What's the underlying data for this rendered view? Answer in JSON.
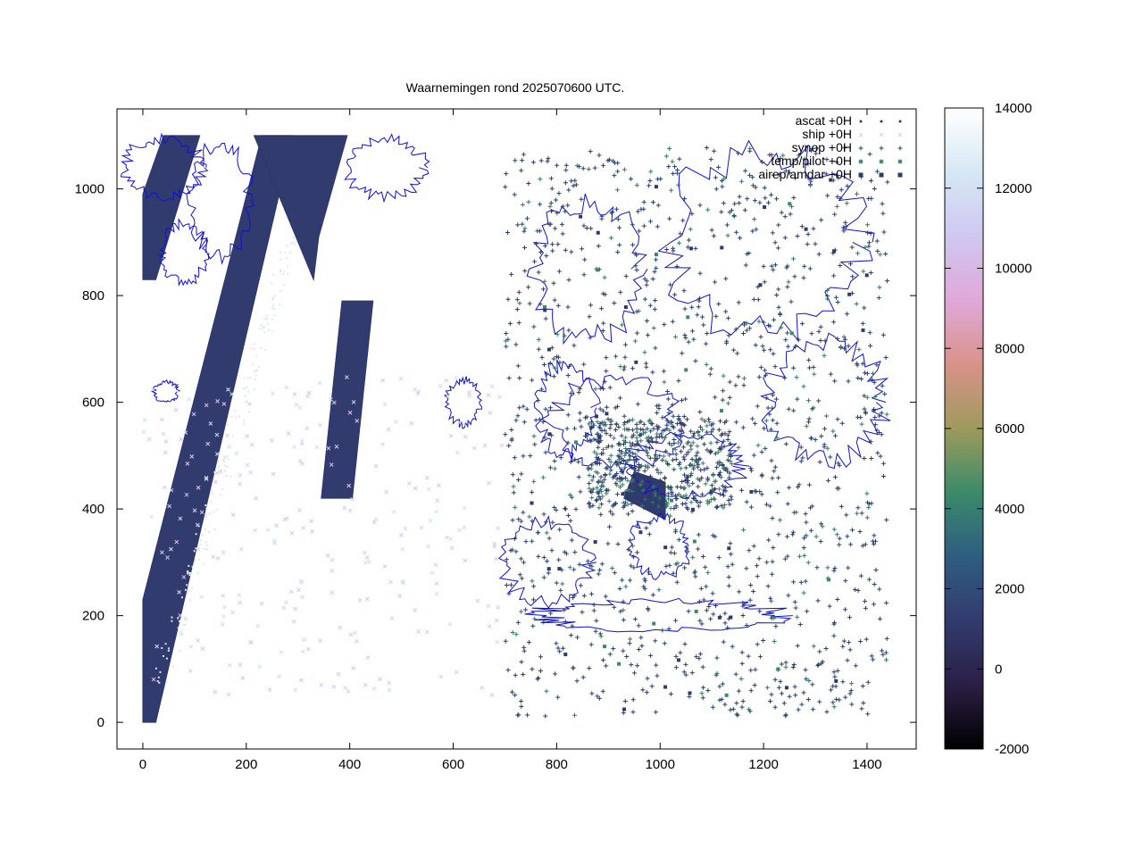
{
  "chart_data": {
    "type": "scatter",
    "title": "Waarnemingen rond 2025070600 UTC.",
    "xlabel": "",
    "ylabel": "",
    "xlim": [
      -50,
      1495
    ],
    "ylim": [
      -50,
      1150
    ],
    "x_ticks": [
      0,
      200,
      400,
      600,
      800,
      1000,
      1200,
      1400
    ],
    "y_ticks": [
      0,
      200,
      400,
      600,
      800,
      1000
    ],
    "grid": false,
    "legend_position": "top-right",
    "series": [
      {
        "name": "ascat +0H",
        "marker": "dot",
        "color": "#2b3a6b"
      },
      {
        "name": "ship +0H",
        "marker": "x",
        "color": "#c9d9ee"
      },
      {
        "name": "synop +0H",
        "marker": "+",
        "color": "#27406e"
      },
      {
        "name": "temp/pilot +0H",
        "marker": "*",
        "color": "#2e7d5b"
      },
      {
        "name": "airep/amdar +0H",
        "marker": "square",
        "color": "#2f3b6f"
      }
    ],
    "colorbar": {
      "min": -2000,
      "max": 14000,
      "ticks": [
        -2000,
        0,
        2000,
        4000,
        6000,
        8000,
        10000,
        12000,
        14000
      ],
      "palette": [
        "#000000",
        "#2a1f45",
        "#323b6e",
        "#2f5d82",
        "#3a8b6a",
        "#9e9a5c",
        "#d9928a",
        "#e0a8d8",
        "#cfc8f0",
        "#d6e8f4",
        "#ffffff"
      ]
    },
    "coastline_color": "#1010d0",
    "regions": [
      {
        "type": "ascat-swath",
        "polygon": [
          [
            0,
            0
          ],
          [
            25,
            0
          ],
          [
            290,
            1100
          ],
          [
            230,
            1100
          ],
          [
            0,
            230
          ]
        ]
      },
      {
        "type": "ascat-swath",
        "polygon": [
          [
            340,
            910
          ],
          [
            395,
            1100
          ],
          [
            215,
            1100
          ],
          [
            330,
            830
          ]
        ]
      },
      {
        "type": "ascat-swath",
        "polygon": [
          [
            345,
            420
          ],
          [
            405,
            420
          ],
          [
            445,
            790
          ],
          [
            385,
            790
          ]
        ]
      },
      {
        "type": "ascat-swath",
        "polygon": [
          [
            0,
            830
          ],
          [
            25,
            830
          ],
          [
            110,
            1100
          ],
          [
            40,
            1100
          ],
          [
            0,
            990
          ]
        ]
      },
      {
        "type": "ascat-swath",
        "polygon": [
          [
            930,
            420
          ],
          [
            1010,
            380
          ],
          [
            1010,
            450
          ],
          [
            950,
            470
          ]
        ]
      }
    ],
    "synop_region": {
      "x": [
        700,
        1440
      ],
      "y": [
        10,
        1080
      ]
    },
    "ship_region": {
      "x": [
        0,
        700
      ],
      "y": [
        50,
        650
      ]
    }
  }
}
